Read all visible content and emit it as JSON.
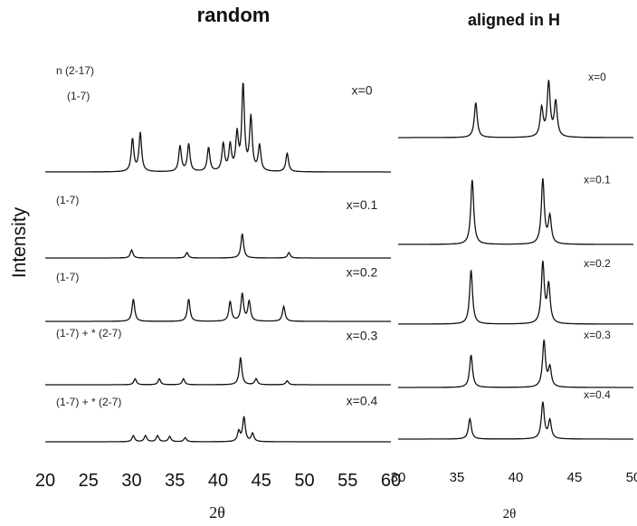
{
  "chart_data": [
    {
      "type": "line",
      "title": "random",
      "xlabel": "2θ",
      "ylabel": "Intensity",
      "xlim": [
        20,
        60
      ],
      "x_ticks": [
        "20",
        "25",
        "30",
        "35",
        "40",
        "45",
        "50",
        "55",
        "60"
      ],
      "panels": [
        {
          "composition": "x=0",
          "phase_labels": [
            "n (2-17)",
            "(1-7)"
          ],
          "peaks": [
            [
              30.1,
              0.38
            ],
            [
              31.0,
              0.45
            ],
            [
              35.6,
              0.3
            ],
            [
              36.6,
              0.32
            ],
            [
              38.9,
              0.28
            ],
            [
              40.6,
              0.32
            ],
            [
              41.4,
              0.3
            ],
            [
              42.2,
              0.42
            ],
            [
              42.9,
              1.0
            ],
            [
              43.8,
              0.62
            ],
            [
              44.8,
              0.3
            ],
            [
              48.0,
              0.22
            ]
          ]
        },
        {
          "composition": "x=0.1",
          "phase_labels": [
            "(1-7)"
          ],
          "peaks": [
            [
              30.0,
              0.15
            ],
            [
              36.4,
              0.1
            ],
            [
              42.8,
              0.45
            ],
            [
              48.2,
              0.1
            ]
          ]
        },
        {
          "composition": "x=0.2",
          "phase_labels": [
            "(1-7)"
          ],
          "peaks": [
            [
              30.2,
              0.45
            ],
            [
              36.6,
              0.45
            ],
            [
              41.4,
              0.4
            ],
            [
              42.8,
              0.55
            ],
            [
              43.6,
              0.4
            ],
            [
              47.6,
              0.3
            ]
          ]
        },
        {
          "composition": "x=0.3",
          "phase_labels": [
            "(1-7) + * (2-7)"
          ],
          "peaks": [
            [
              30.4,
              0.12
            ],
            [
              33.2,
              0.12
            ],
            [
              36.0,
              0.12
            ],
            [
              42.6,
              0.55
            ],
            [
              44.4,
              0.12
            ],
            [
              48.0,
              0.08
            ]
          ]
        },
        {
          "composition": "x=0.4",
          "phase_labels": [
            "(1-7) + * (2-7)"
          ],
          "peaks": [
            [
              30.2,
              0.15
            ],
            [
              31.6,
              0.15
            ],
            [
              33.0,
              0.15
            ],
            [
              34.4,
              0.13
            ],
            [
              36.2,
              0.1
            ],
            [
              42.4,
              0.25
            ],
            [
              43.0,
              0.6
            ],
            [
              44.0,
              0.2
            ]
          ]
        }
      ]
    },
    {
      "type": "line",
      "title": "aligned in H",
      "xlabel": "2θ",
      "xlim": [
        30,
        50
      ],
      "x_ticks": [
        "30",
        "35",
        "40",
        "45",
        "50"
      ],
      "panels": [
        {
          "composition": "x=0",
          "peaks": [
            [
              36.6,
              0.55
            ],
            [
              42.2,
              0.45
            ],
            [
              42.8,
              0.85
            ],
            [
              43.4,
              0.55
            ]
          ]
        },
        {
          "composition": "x=0.1",
          "peaks": [
            [
              36.3,
              0.95
            ],
            [
              42.3,
              0.95
            ],
            [
              42.9,
              0.4
            ]
          ]
        },
        {
          "composition": "x=0.2",
          "peaks": [
            [
              36.2,
              0.85
            ],
            [
              42.3,
              0.95
            ],
            [
              42.8,
              0.6
            ]
          ]
        },
        {
          "composition": "x=0.3",
          "peaks": [
            [
              36.2,
              0.6
            ],
            [
              42.4,
              0.85
            ],
            [
              42.9,
              0.35
            ]
          ]
        },
        {
          "composition": "x=0.4",
          "peaks": [
            [
              36.1,
              0.45
            ],
            [
              42.3,
              0.8
            ],
            [
              42.9,
              0.4
            ]
          ]
        }
      ]
    }
  ]
}
